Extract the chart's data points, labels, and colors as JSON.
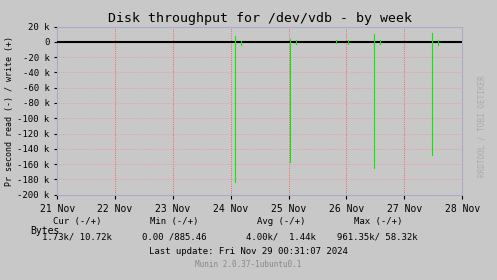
{
  "title": "Disk throughput for /dev/vdb - by week",
  "ylabel": "Pr second read (-) / write (+)",
  "background_color": "#c8c8c8",
  "plot_background": "#c8c8c8",
  "grid_color": "#ff8080",
  "line_color": "#00ee00",
  "zero_line_color": "#000000",
  "ylim": [
    -200000,
    20000
  ],
  "yticks": [
    20000,
    0,
    -20000,
    -40000,
    -60000,
    -80000,
    -100000,
    -120000,
    -140000,
    -160000,
    -180000,
    -200000
  ],
  "ytick_labels": [
    "20 k",
    "0",
    "-20 k",
    "-40 k",
    "-60 k",
    "-80 k",
    "-100 k",
    "-120 k",
    "-140 k",
    "-160 k",
    "-180 k",
    "-200 k"
  ],
  "x_start": 0,
  "x_end": 7,
  "xtick_positions": [
    0,
    1,
    2,
    3,
    4,
    5,
    6,
    7
  ],
  "xtick_labels": [
    "21 Nov",
    "22 Nov",
    "23 Nov",
    "24 Nov",
    "25 Nov",
    "26 Nov",
    "27 Nov",
    "28 Nov"
  ],
  "vline_color": "#ff4444",
  "vline_positions": [
    0,
    1,
    2,
    3,
    4,
    5,
    6,
    7
  ],
  "right_panel_color": "#d8d8d8",
  "right_label": "RRDTOOL / TOBI OETIKER",
  "legend_label": "Bytes",
  "legend_color": "#00cc00",
  "spikes": [
    {
      "x": 3.08,
      "y_min": -183000,
      "y_max": 8000
    },
    {
      "x": 3.18,
      "y_min": -4000,
      "y_max": 1000
    },
    {
      "x": 4.02,
      "y_min": -157000,
      "y_max": 4000
    },
    {
      "x": 4.12,
      "y_min": -3000,
      "y_max": 3000
    },
    {
      "x": 4.82,
      "y_min": -2000,
      "y_max": 2000
    },
    {
      "x": 5.02,
      "y_min": -3000,
      "y_max": 3000
    },
    {
      "x": 5.48,
      "y_min": -165000,
      "y_max": 10000
    },
    {
      "x": 5.58,
      "y_min": -3000,
      "y_max": 2000
    },
    {
      "x": 6.48,
      "y_min": -148000,
      "y_max": 12000
    },
    {
      "x": 6.58,
      "y_min": -4000,
      "y_max": 3000
    },
    {
      "x": 7.02,
      "y_min": -2000,
      "y_max": 2000
    },
    {
      "x": 7.12,
      "y_min": -2000,
      "y_max": 2000
    }
  ],
  "footer_cur_label": "Cur (-/+)",
  "footer_min_label": "Min (-/+)",
  "footer_avg_label": "Avg (-/+)",
  "footer_max_label": "Max (-/+)",
  "footer_cur_val": "1.73k/ 10.72k",
  "footer_min_val": "0.00 /885.46",
  "footer_avg_val": "4.00k/  1.44k",
  "footer_max_val": "961.35k/ 58.32k",
  "footer_lastupdate": "Last update: Fri Nov 29 00:31:07 2024",
  "footer_munin": "Munin 2.0.37-1ubuntu0.1"
}
